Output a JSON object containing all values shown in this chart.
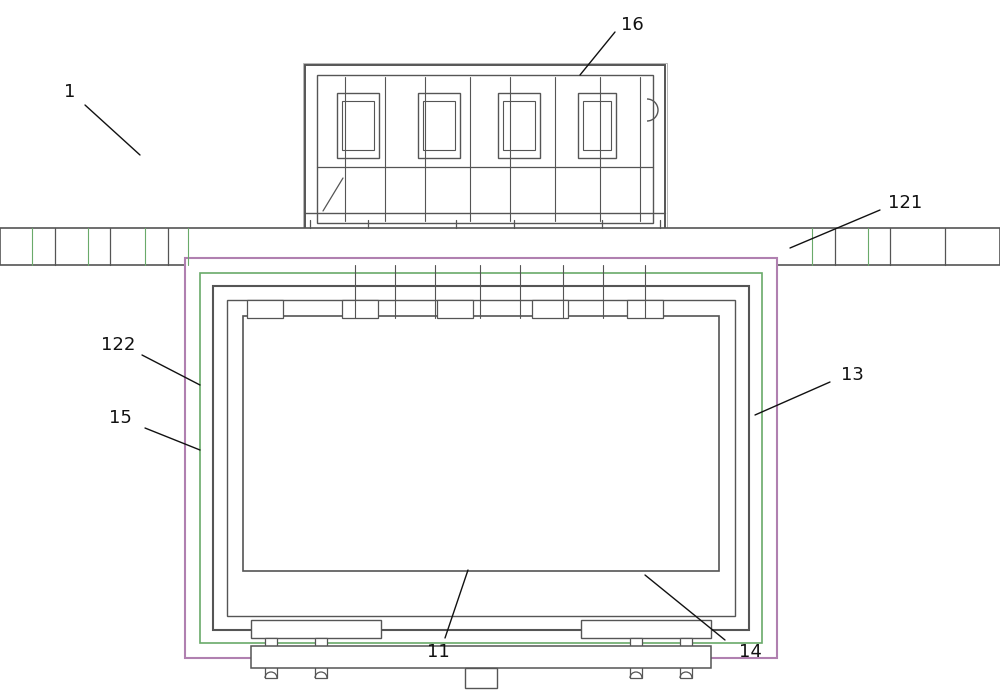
{
  "bg_color": "#ffffff",
  "lc": "#555555",
  "gc": "#6aaa6a",
  "pc": "#b080b0",
  "fig_width": 10.0,
  "fig_height": 7.0
}
